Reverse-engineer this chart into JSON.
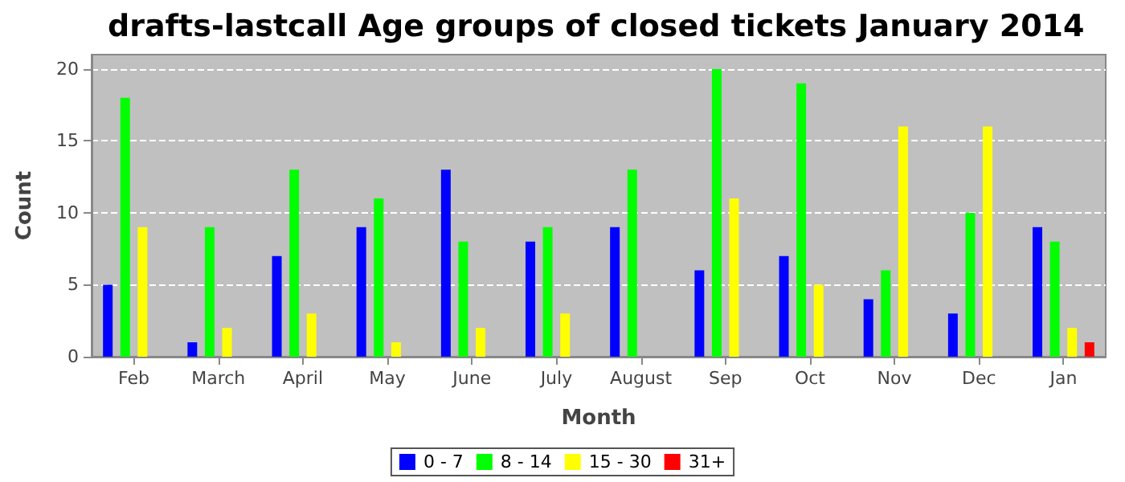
{
  "chart_data": {
    "type": "bar",
    "title": "drafts-lastcall Age groups of closed tickets January 2014",
    "xlabel": "Month",
    "ylabel": "Count",
    "categories": [
      "Feb",
      "March",
      "April",
      "May",
      "June",
      "July",
      "August",
      "Sep",
      "Oct",
      "Nov",
      "Dec",
      "Jan"
    ],
    "series": [
      {
        "name": "0 - 7",
        "color": "#0000ff",
        "values": [
          5,
          1,
          7,
          9,
          13,
          8,
          9,
          6,
          7,
          4,
          3,
          9
        ]
      },
      {
        "name": "8 - 14",
        "color": "#00ff00",
        "values": [
          18,
          9,
          13,
          11,
          8,
          9,
          13,
          20,
          19,
          6,
          10,
          8
        ]
      },
      {
        "name": "15 - 30",
        "color": "#ffff00",
        "values": [
          9,
          2,
          3,
          1,
          2,
          3,
          0,
          11,
          5,
          16,
          16,
          2
        ]
      },
      {
        "name": "31+",
        "color": "#ff0000",
        "values": [
          0,
          0,
          0,
          0,
          0,
          0,
          0,
          0,
          0,
          0,
          0,
          1
        ]
      }
    ],
    "ylim": [
      0,
      21
    ],
    "yticks": [
      0,
      5,
      10,
      15,
      20
    ],
    "grid": "y",
    "legend": "bottom"
  }
}
